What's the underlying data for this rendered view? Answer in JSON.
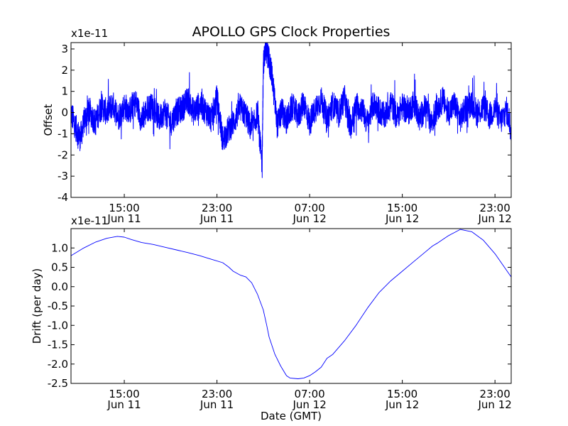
{
  "chart_data": [
    {
      "type": "line",
      "title": "APOLLO GPS Clock Properties",
      "ylabel": "Offset",
      "xlabel": "",
      "y_multiplier_label": "x1e-11",
      "xlim_hours": [
        10.4,
        48.4
      ],
      "ylim": [
        -4,
        3.3
      ],
      "yticks": [
        {
          "value": -4,
          "label": "-4"
        },
        {
          "value": -3,
          "label": "-3"
        },
        {
          "value": -2,
          "label": "-2"
        },
        {
          "value": -1,
          "label": "-1"
        },
        {
          "value": 0,
          "label": "0"
        },
        {
          "value": 1,
          "label": "1"
        },
        {
          "value": 2,
          "label": "2"
        },
        {
          "value": 3,
          "label": "3"
        }
      ],
      "xticks": [
        {
          "hours": 15,
          "time": "15:00",
          "date": "Jun 11"
        },
        {
          "hours": 23,
          "time": "23:00",
          "date": "Jun 11"
        },
        {
          "hours": 31,
          "time": "07:00",
          "date": "Jun 12"
        },
        {
          "hours": 39,
          "time": "15:00",
          "date": "Jun 12"
        },
        {
          "hours": 47,
          "time": "23:00",
          "date": "Jun 12"
        }
      ],
      "color": "#0000ff",
      "series": [
        {
          "name": "offset",
          "x_hours": [
            10.4,
            10.8,
            11.2,
            11.6,
            12.0,
            12.5,
            13.0,
            13.5,
            14.0,
            14.5,
            15.0,
            15.5,
            16.0,
            16.5,
            17.0,
            17.5,
            18.0,
            18.5,
            19.0,
            19.5,
            20.0,
            20.5,
            21.0,
            21.5,
            22.0,
            22.5,
            23.0,
            23.5,
            24.0,
            24.5,
            25.0,
            25.5,
            26.0,
            26.5,
            26.9,
            27.0,
            27.2,
            27.5,
            27.8,
            28.2,
            28.6,
            29.0,
            29.5,
            30.0,
            30.5,
            31.0,
            31.5,
            32.0,
            32.5,
            33.0,
            33.5,
            34.0,
            34.5,
            35.0,
            35.5,
            36.0,
            36.5,
            37.0,
            37.5,
            38.0,
            38.5,
            39.0,
            39.5,
            40.0,
            40.5,
            41.0,
            41.5,
            42.0,
            42.5,
            43.0,
            43.5,
            44.0,
            44.5,
            45.0,
            45.5,
            46.0,
            46.5,
            47.0,
            47.5,
            48.0,
            48.4
          ],
          "values": [
            0.0,
            -0.7,
            -1.2,
            -0.3,
            0.1,
            -0.5,
            0.3,
            0.0,
            0.4,
            -0.2,
            0.3,
            0.1,
            0.5,
            -0.4,
            0.2,
            0.3,
            -0.3,
            0.1,
            -0.5,
            0.0,
            0.2,
            0.6,
            0.0,
            0.4,
            0.1,
            -0.3,
            0.7,
            -1.3,
            -0.8,
            -0.4,
            0.2,
            -0.1,
            -0.9,
            0.0,
            -2.6,
            2.2,
            3.1,
            2.5,
            1.5,
            -0.6,
            0.1,
            -0.4,
            0.3,
            -0.2,
            0.5,
            -0.5,
            0.2,
            0.6,
            -0.3,
            0.4,
            -0.1,
            0.7,
            -0.7,
            0.3,
            0.2,
            -0.5,
            0.4,
            0.1,
            -0.2,
            0.5,
            -0.2,
            0.3,
            0.0,
            0.5,
            -0.3,
            0.3,
            -0.5,
            0.2,
            0.6,
            0.0,
            0.4,
            -0.3,
            0.2,
            0.5,
            -0.1,
            0.3,
            -0.2,
            0.2,
            -0.4,
            0.1,
            -0.7
          ]
        }
      ]
    },
    {
      "type": "line",
      "title": "",
      "ylabel": "Drift (per day)",
      "xlabel": "Date (GMT)",
      "y_multiplier_label": "x1e-11",
      "xlim_hours": [
        10.4,
        48.4
      ],
      "ylim": [
        -2.5,
        1.5
      ],
      "yticks": [
        {
          "value": -2.5,
          "label": "-2.5"
        },
        {
          "value": -2.0,
          "label": "-2.0"
        },
        {
          "value": -1.5,
          "label": "-1.5"
        },
        {
          "value": -1.0,
          "label": "-1.0"
        },
        {
          "value": -0.5,
          "label": "-0.5"
        },
        {
          "value": 0.0,
          "label": "0.0"
        },
        {
          "value": 0.5,
          "label": "0.5"
        },
        {
          "value": 1.0,
          "label": "1.0"
        }
      ],
      "xticks": [
        {
          "hours": 15,
          "time": "15:00",
          "date": "Jun 11"
        },
        {
          "hours": 23,
          "time": "23:00",
          "date": "Jun 11"
        },
        {
          "hours": 31,
          "time": "07:00",
          "date": "Jun 12"
        },
        {
          "hours": 39,
          "time": "15:00",
          "date": "Jun 12"
        },
        {
          "hours": 47,
          "time": "23:00",
          "date": "Jun 12"
        }
      ],
      "color": "#0000ff",
      "series": [
        {
          "name": "drift",
          "x_hours": [
            10.4,
            11.5,
            12.5,
            13.5,
            14.4,
            15.0,
            15.6,
            16.5,
            17.5,
            18.5,
            19.5,
            20.5,
            21.5,
            22.5,
            23.5,
            24.0,
            24.4,
            25.0,
            25.5,
            26.0,
            26.5,
            27.0,
            27.3,
            27.5,
            28.0,
            28.5,
            29.0,
            29.3,
            30.0,
            30.5,
            31.0,
            31.5,
            32.0,
            32.5,
            33.0,
            34.0,
            35.0,
            36.0,
            37.0,
            38.0,
            39.0,
            40.0,
            41.0,
            41.6,
            42.0,
            42.5,
            43.0,
            43.5,
            44.0,
            45.0,
            46.0,
            47.0,
            48.4
          ],
          "values": [
            0.8,
            1.0,
            1.15,
            1.25,
            1.3,
            1.28,
            1.22,
            1.14,
            1.09,
            1.02,
            0.95,
            0.88,
            0.8,
            0.71,
            0.62,
            0.51,
            0.4,
            0.3,
            0.25,
            0.1,
            -0.2,
            -0.6,
            -1.0,
            -1.3,
            -1.75,
            -2.05,
            -2.3,
            -2.36,
            -2.38,
            -2.36,
            -2.3,
            -2.2,
            -2.08,
            -1.85,
            -1.75,
            -1.4,
            -1.0,
            -0.55,
            -0.15,
            0.15,
            0.4,
            0.65,
            0.9,
            1.05,
            1.12,
            1.22,
            1.32,
            1.4,
            1.48,
            1.42,
            1.2,
            0.85,
            0.25
          ]
        }
      ]
    }
  ]
}
